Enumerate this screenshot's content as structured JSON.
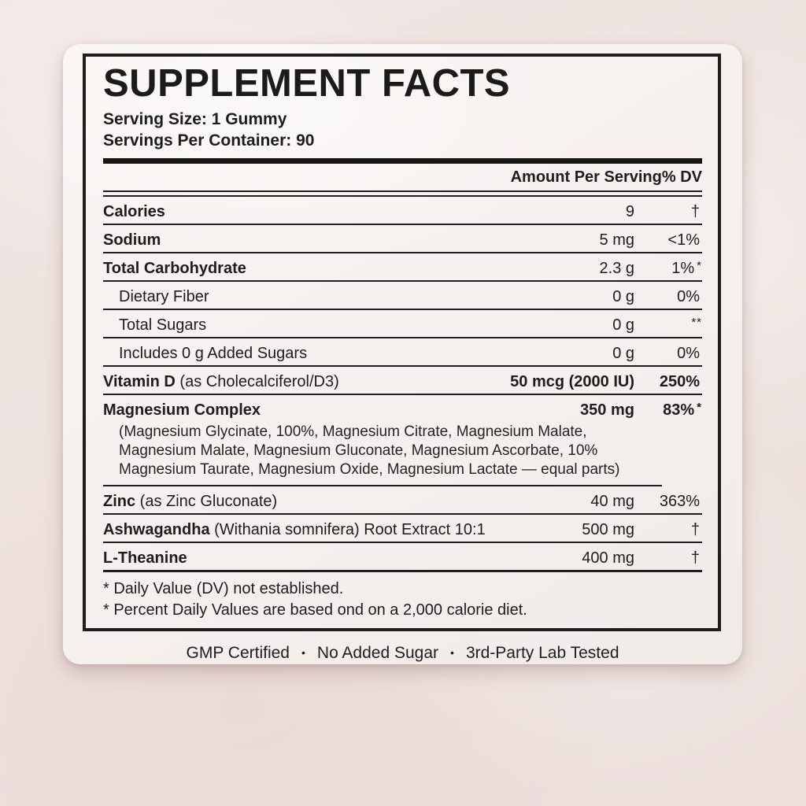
{
  "colors": {
    "ink": "#1d1d1d",
    "rule": "#1e1e1e",
    "card": "#f6f1ee",
    "page": "#eee2df"
  },
  "label": {
    "title": "SUPPLEMENT FACTS",
    "serving_size": "Serving Size: 1 Gummy",
    "servings_per_container": "Servings Per Container: 90",
    "columns": {
      "amount": "Amount Per Serving",
      "dv": "% DV"
    },
    "rows": [
      {
        "name": "Calories",
        "rest": "",
        "amount": "9",
        "dv": "†",
        "mark": ""
      },
      {
        "name": "Sodium",
        "rest": "",
        "amount": "5 mg",
        "dv": "<1%",
        "mark": ""
      },
      {
        "name": "Total Carbohydrate",
        "rest": "",
        "amount": "2.3 g",
        "dv": "1%",
        "mark": "*"
      },
      {
        "name": "Dietary Fiber",
        "rest": "",
        "amount": "0 g",
        "dv": "0%",
        "mark": ""
      },
      {
        "name": "Total Sugars",
        "rest": "",
        "amount": "0 g",
        "dv": "",
        "mark": "**"
      },
      {
        "name": "Includes 0 g Added Sugars",
        "rest": "",
        "amount": "0 g",
        "dv": "0%",
        "mark": ""
      },
      {
        "name": "Vitamin D",
        "rest": " (as Cholecalciferol/D3)",
        "amount": "50 mcg (2000 IU)",
        "dv": "250%",
        "mark": ""
      },
      {
        "name": "Magnesium Complex",
        "rest": "",
        "amount": "350 mg",
        "dv": "83%",
        "mark": "*"
      },
      {
        "name": "Zinc",
        "rest": " (as Zinc Gluconate)",
        "amount": "40 mg",
        "dv": "363%",
        "mark": ""
      },
      {
        "name": "Ashwagandha",
        "rest": " (Withania somnifera) Root Extract 10:1",
        "amount": "500 mg",
        "dv": "†",
        "mark": ""
      },
      {
        "name": "L-Theanine",
        "rest": "",
        "amount": "400 mg",
        "dv": "†",
        "mark": ""
      }
    ],
    "magnesium_ingredients": "(Magnesium Glycinate, 100%, Magnesium Citrate, Magnesium Malate, Magnesium Malate, Magnesium Gluconate, Magnesium Ascorbate, 10% Magnesium Taurate, Magnesium Oxide, Magnesium Lactate — equal parts)",
    "footnote_1": "* Daily Value (DV) not established.",
    "footnote_2": "* Percent Daily Values are based ond on a 2,000 calorie diet.",
    "badges": {
      "separator": "•",
      "items": [
        "GMP Certified",
        "No Added Sugar",
        "3rd-Party Lab Tested"
      ]
    }
  }
}
